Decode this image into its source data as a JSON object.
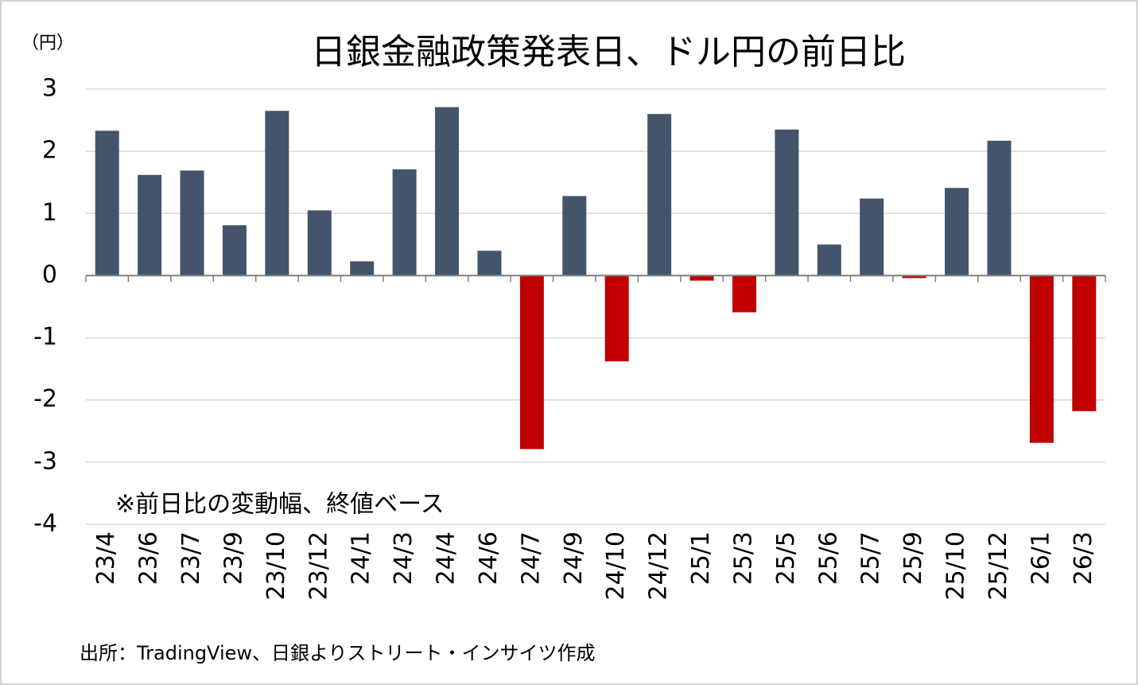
{
  "chart_data": {
    "type": "bar",
    "title": "日銀金融政策発表日、ドル円の前日比",
    "y_unit": "（円）",
    "annotation": "※前日比の変動幅、終値ベース",
    "source": "出所：TradingView、日銀よりストリート・インサイツ作成",
    "categories": [
      "23/4",
      "23/6",
      "23/7",
      "23/9",
      "23/10",
      "23/12",
      "24/1",
      "24/3",
      "24/4",
      "24/6",
      "24/7",
      "24/9",
      "24/10",
      "24/12",
      "25/1",
      "25/3",
      "25/5",
      "25/6",
      "25/7",
      "25/9",
      "25/10",
      "25/12",
      "26/1",
      "26/3"
    ],
    "values": [
      2.33,
      1.62,
      1.69,
      0.81,
      2.65,
      1.05,
      0.23,
      1.71,
      2.71,
      0.4,
      -2.79,
      1.28,
      -1.38,
      2.6,
      -0.08,
      -0.59,
      2.35,
      0.5,
      1.24,
      -0.04,
      1.41,
      2.17,
      -2.69,
      -2.18
    ],
    "color_positive": "#44546a",
    "color_negative": "#c00000",
    "ylim": [
      -4,
      3
    ],
    "yticks": [
      -4,
      -3,
      -2,
      -1,
      0,
      1,
      2,
      3
    ],
    "grid": true
  }
}
